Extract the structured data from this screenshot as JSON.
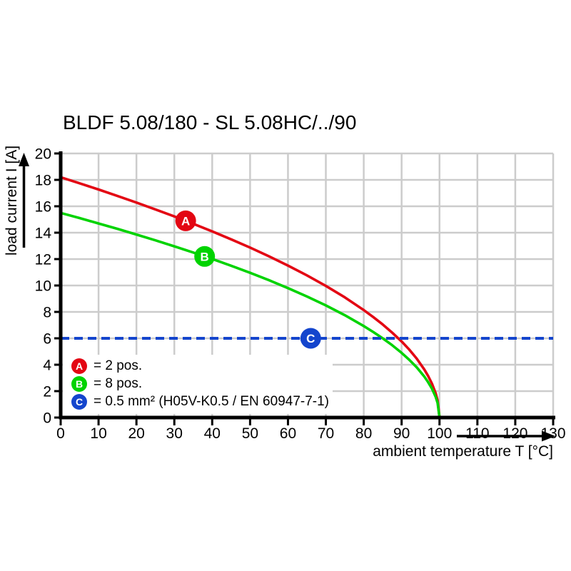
{
  "title": "BLDF 5.08/180 - SL 5.08HC/../90",
  "chart_data": {
    "type": "line",
    "title": "BLDF 5.08/180 - SL 5.08HC/../90",
    "xlabel": "ambient temperature T [°C]",
    "ylabel": "load current I [A]",
    "xlim": [
      0,
      130
    ],
    "ylim": [
      0,
      20
    ],
    "x_ticks": [
      0,
      10,
      20,
      30,
      40,
      50,
      60,
      70,
      80,
      90,
      100,
      110,
      120,
      130
    ],
    "y_ticks": [
      0,
      2,
      4,
      6,
      8,
      10,
      12,
      14,
      16,
      18,
      20
    ],
    "grid": true,
    "grid_color": "#cccccc",
    "axis_color": "#000000",
    "legend_position": "bottom-left-inside",
    "series": [
      {
        "name": "A",
        "label": "2 pos.",
        "color": "#e30613",
        "style": "solid",
        "marker": {
          "t": 33,
          "i": 14.9
        },
        "points": [
          [
            0,
            18.2
          ],
          [
            5,
            17.74
          ],
          [
            10,
            17.27
          ],
          [
            15,
            16.78
          ],
          [
            20,
            16.28
          ],
          [
            25,
            15.76
          ],
          [
            30,
            15.23
          ],
          [
            35,
            14.67
          ],
          [
            40,
            14.1
          ],
          [
            45,
            13.5
          ],
          [
            50,
            12.87
          ],
          [
            55,
            12.21
          ],
          [
            60,
            11.51
          ],
          [
            65,
            10.77
          ],
          [
            70,
            9.97
          ],
          [
            75,
            9.1
          ],
          [
            80,
            8.14
          ],
          [
            82.5,
            7.61
          ],
          [
            85,
            7.05
          ],
          [
            87.5,
            6.43
          ],
          [
            90,
            5.76
          ],
          [
            92,
            5.15
          ],
          [
            94,
            4.46
          ],
          [
            96,
            3.64
          ],
          [
            97,
            3.15
          ],
          [
            98,
            2.57
          ],
          [
            99,
            1.82
          ],
          [
            99.5,
            1.29
          ],
          [
            100,
            0
          ]
        ]
      },
      {
        "name": "B",
        "label": "8 pos.",
        "color": "#00d300",
        "style": "solid",
        "marker": {
          "t": 38,
          "i": 12.2
        },
        "points": [
          [
            0,
            15.5
          ],
          [
            5,
            15.11
          ],
          [
            10,
            14.7
          ],
          [
            15,
            14.29
          ],
          [
            20,
            13.86
          ],
          [
            25,
            13.42
          ],
          [
            30,
            12.97
          ],
          [
            35,
            12.5
          ],
          [
            40,
            12.01
          ],
          [
            45,
            11.5
          ],
          [
            50,
            10.96
          ],
          [
            55,
            10.4
          ],
          [
            60,
            9.8
          ],
          [
            65,
            9.17
          ],
          [
            70,
            8.49
          ],
          [
            75,
            7.75
          ],
          [
            80,
            6.93
          ],
          [
            82.5,
            6.48
          ],
          [
            85,
            6
          ],
          [
            87.5,
            5.48
          ],
          [
            90,
            4.9
          ],
          [
            92,
            4.38
          ],
          [
            94,
            3.8
          ],
          [
            96,
            3.1
          ],
          [
            97,
            2.68
          ],
          [
            98,
            2.19
          ],
          [
            99,
            1.55
          ],
          [
            99.5,
            1.1
          ],
          [
            100,
            0
          ]
        ]
      },
      {
        "name": "C",
        "label": "0.5 mm² (H05V-K0.5 / EN 60947-7-1)",
        "color": "#1445cd",
        "style": "dashed",
        "marker": {
          "t": 66,
          "i": 6
        },
        "points": [
          [
            0,
            6
          ],
          [
            130,
            6
          ]
        ]
      }
    ]
  },
  "legend": {
    "items": [
      {
        "key": "A",
        "text": "= 2 pos.",
        "color": "#e30613"
      },
      {
        "key": "B",
        "text": "= 8 pos.",
        "color": "#00d300"
      },
      {
        "key": "C",
        "text": "= 0.5 mm² (H05V-K0.5 / EN 60947-7-1)",
        "color": "#1445cd"
      }
    ]
  }
}
